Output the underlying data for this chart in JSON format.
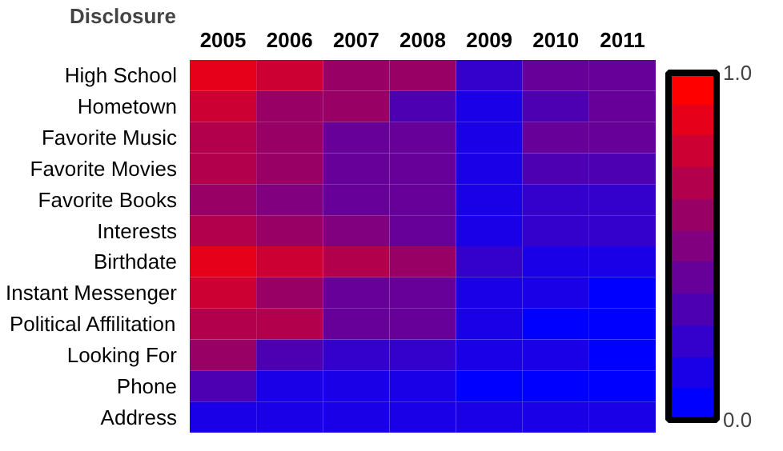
{
  "chart_data": {
    "type": "heatmap",
    "ylabel": "Disclosure",
    "categories": [
      "2005",
      "2006",
      "2007",
      "2008",
      "2009",
      "2010",
      "2011"
    ],
    "y_categories": [
      "High School",
      "Hometown",
      "Favorite Music",
      "Favorite Movies",
      "Favorite Books",
      "Interests",
      "Birthdate",
      "Instant Messenger",
      "Political Affilitation",
      "Looking For",
      "Phone",
      "Address"
    ],
    "cells": [
      [
        0.9,
        0.75,
        0.6,
        0.55,
        0.2,
        0.4,
        0.45
      ],
      [
        0.8,
        0.6,
        0.6,
        0.35,
        0.1,
        0.3,
        0.45
      ],
      [
        0.7,
        0.55,
        0.45,
        0.4,
        0.1,
        0.4,
        0.4
      ],
      [
        0.7,
        0.55,
        0.45,
        0.4,
        0.1,
        0.3,
        0.3
      ],
      [
        0.6,
        0.5,
        0.45,
        0.4,
        0.1,
        0.2,
        0.2
      ],
      [
        0.7,
        0.6,
        0.5,
        0.4,
        0.1,
        0.2,
        0.2
      ],
      [
        0.9,
        0.8,
        0.7,
        0.6,
        0.2,
        0.15,
        0.15
      ],
      [
        0.8,
        0.6,
        0.45,
        0.4,
        0.1,
        0.1,
        0.0
      ],
      [
        0.65,
        0.65,
        0.45,
        0.4,
        0.1,
        0.05,
        0.05
      ],
      [
        0.6,
        0.3,
        0.25,
        0.2,
        0.1,
        0.1,
        0.0
      ],
      [
        0.35,
        0.15,
        0.1,
        0.1,
        0.0,
        0.0,
        0.0
      ],
      [
        0.1,
        0.1,
        0.1,
        0.1,
        0.1,
        0.1,
        0.1
      ]
    ],
    "clim": [
      0,
      1
    ],
    "cticks": [
      {
        "value": 0,
        "label": "0.0"
      },
      {
        "value": 1,
        "label": "1.0"
      }
    ]
  }
}
